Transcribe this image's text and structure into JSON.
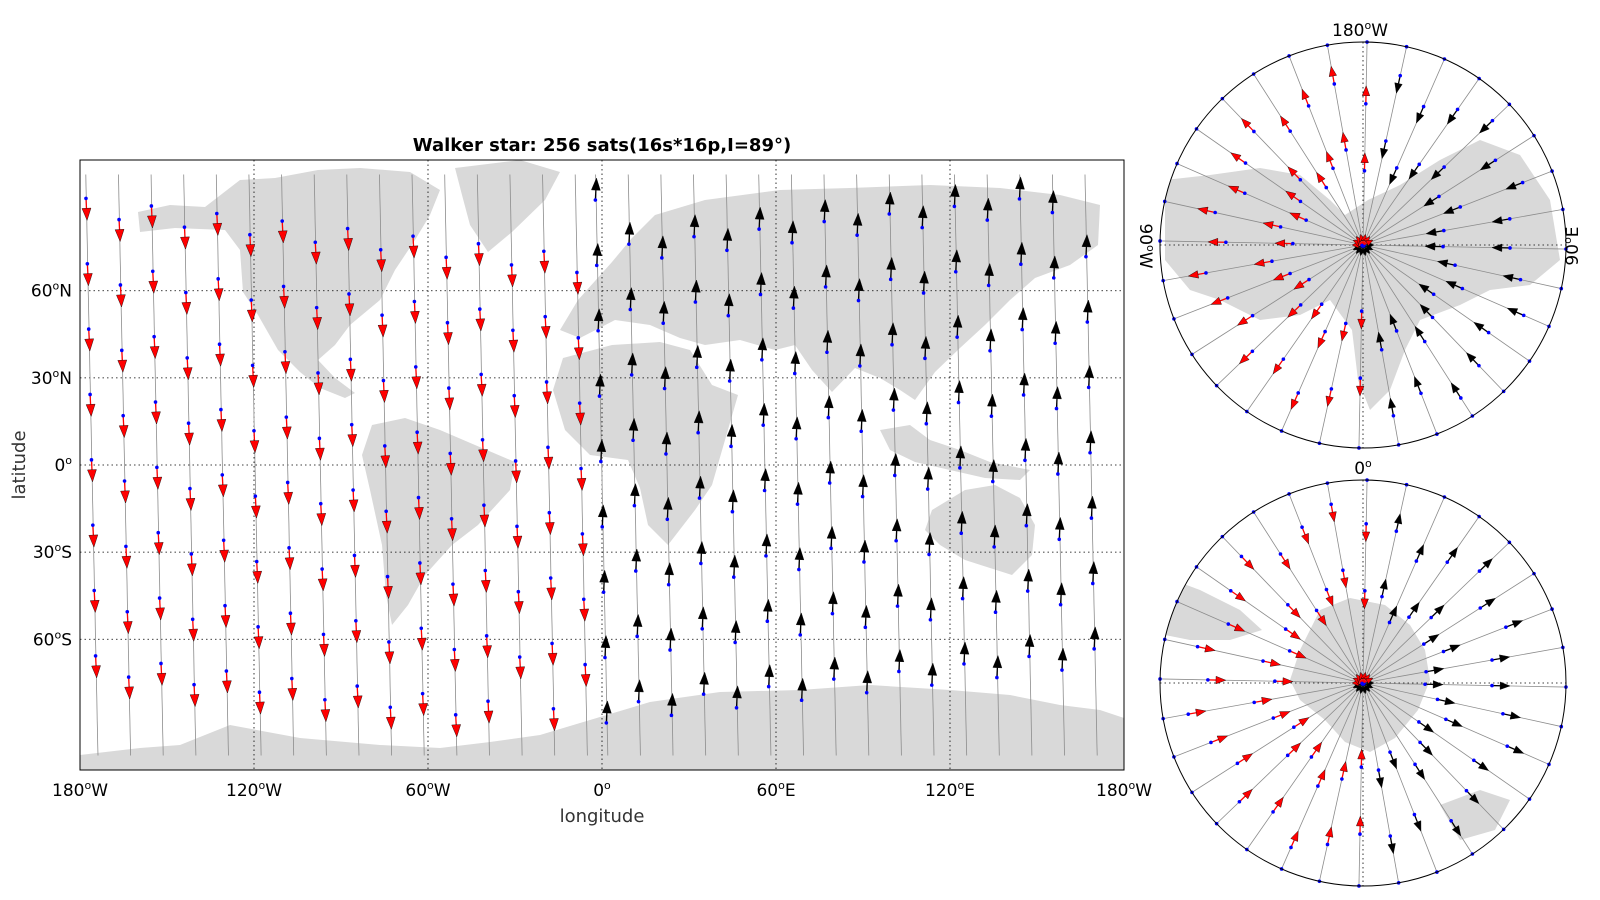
{
  "chart_data": [
    {
      "type": "scatter",
      "projection": "equirectangular",
      "title": "Walker star: 256 sats(16s*16p,I=89°)",
      "xlabel": "longitude",
      "ylabel": "latitude",
      "xlim": [
        -180,
        180
      ],
      "ylim": [
        -105,
        105
      ],
      "xticks": [
        {
          "value": -180,
          "label": "180",
          "dir": "W"
        },
        {
          "value": -120,
          "label": "120",
          "dir": "W"
        },
        {
          "value": -60,
          "label": "60",
          "dir": "W"
        },
        {
          "value": 0,
          "label": "0",
          "dir": ""
        },
        {
          "value": 60,
          "label": "60",
          "dir": "E"
        },
        {
          "value": 120,
          "label": "120",
          "dir": "E"
        },
        {
          "value": 180,
          "label": "180",
          "dir": "W"
        }
      ],
      "yticks": [
        {
          "value": 60,
          "label": "60",
          "dir": "N"
        },
        {
          "value": 30,
          "label": "30",
          "dir": "N"
        },
        {
          "value": 0,
          "label": "0",
          "dir": ""
        },
        {
          "value": -30,
          "label": "30",
          "dir": "S"
        },
        {
          "value": -60,
          "label": "60",
          "dir": "S"
        }
      ],
      "grid": "dotted",
      "constellation": {
        "planes": 16,
        "sats_per_plane": 16,
        "inclination_deg": 89
      },
      "series": [
        {
          "color": "#ff0000",
          "direction": "southward",
          "longitude_range": [
            -180,
            0
          ]
        },
        {
          "color": "#000000",
          "direction": "northward",
          "longitude_range": [
            0,
            180
          ]
        }
      ],
      "land_color": "#d9d9d9",
      "ground_track_color": "#8c8c8c",
      "satellite_marker_color": "#0000ff"
    },
    {
      "type": "scatter",
      "projection": "polar-stereographic",
      "hemisphere": "north",
      "labels": {
        "top": "180",
        "top_dir": "W",
        "left": "90",
        "left_dir": "W",
        "right": "90",
        "right_dir": "E"
      }
    },
    {
      "type": "scatter",
      "projection": "polar-stereographic",
      "hemisphere": "south",
      "labels": {
        "top": "0",
        "top_dir": ""
      }
    }
  ]
}
